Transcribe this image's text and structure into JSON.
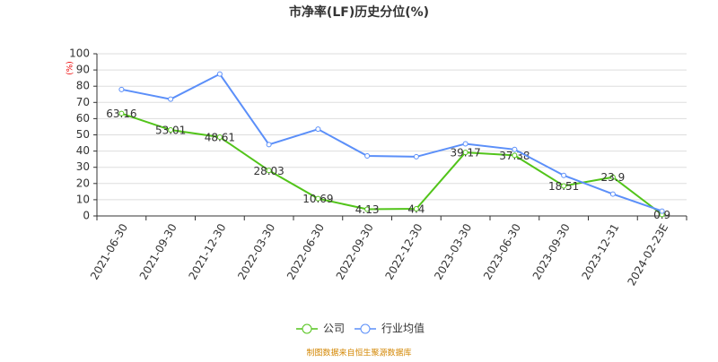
{
  "chart_data": {
    "type": "line",
    "title": "市净率(LF)历史分位(%)",
    "y_label": "(%)",
    "categories": [
      "2021-06-30",
      "2021-09-30",
      "2021-12-30",
      "2022-03-30",
      "2022-06-30",
      "2022-09-30",
      "2022-12-30",
      "2023-03-30",
      "2023-06-30",
      "2023-09-30",
      "2023-12-31",
      "2024-02-23E"
    ],
    "series": [
      {
        "name": "公司",
        "color": "#52c41a",
        "values": [
          63.16,
          53.01,
          48.61,
          28.03,
          10.69,
          4.13,
          4.4,
          39.17,
          37.38,
          18.51,
          23.9,
          0.9
        ],
        "data_labels": true
      },
      {
        "name": "行业均值",
        "color": "#5b8ff9",
        "values": [
          78,
          72,
          87.5,
          44,
          53.5,
          37,
          36.5,
          44.5,
          41,
          25,
          13.5,
          3
        ]
      }
    ],
    "ylim": [
      0,
      100
    ],
    "yticks": [
      0,
      10,
      20,
      30,
      40,
      50,
      60,
      70,
      80,
      90,
      100
    ],
    "grid": true,
    "source": "制图数据来自恒生聚源数据库"
  }
}
